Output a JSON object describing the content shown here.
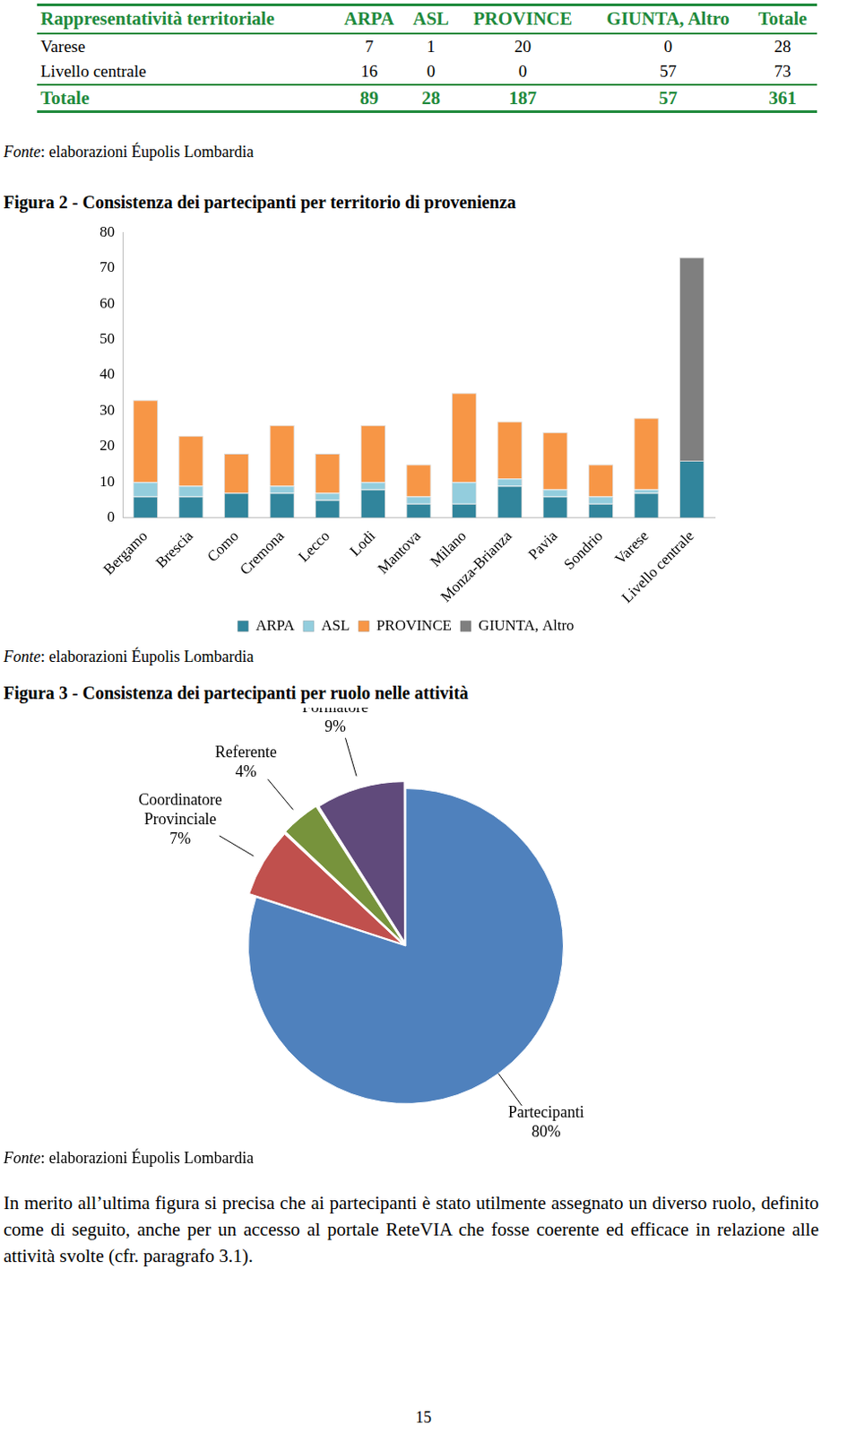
{
  "table": {
    "header": [
      "Rappresentatività territoriale",
      "ARPA",
      "ASL",
      "PROVINCE",
      "GIUNTA, Altro",
      "Totale"
    ],
    "rows": [
      [
        "Varese",
        7,
        1,
        20,
        0,
        28
      ],
      [
        "Livello centrale",
        16,
        0,
        0,
        57,
        73
      ]
    ],
    "total": [
      "Totale",
      89,
      28,
      187,
      57,
      361
    ],
    "source": "Fonte: elaborazioni Éupolis Lombardia"
  },
  "chart_data": [
    {
      "type": "bar",
      "title": "Figura 2 - Consistenza dei partecipanti per territorio di provenienza",
      "categories": [
        "Bergamo",
        "Brescia",
        "Como",
        "Cremona",
        "Lecco",
        "Lodi",
        "Mantova",
        "Milano",
        "Monza-Brianza",
        "Pavia",
        "Sondrio",
        "Varese",
        "Livello centrale"
      ],
      "series": [
        {
          "name": "ARPA",
          "color": "#31859c",
          "values": [
            6,
            6,
            7,
            7,
            5,
            8,
            4,
            4,
            9,
            6,
            4,
            7,
            16
          ]
        },
        {
          "name": "ASL",
          "color": "#93cddd",
          "values": [
            4,
            3,
            0,
            2,
            2,
            2,
            2,
            6,
            2,
            2,
            2,
            1,
            0
          ]
        },
        {
          "name": "PROVINCE",
          "color": "#f79646",
          "values": [
            23,
            14,
            11,
            17,
            11,
            16,
            9,
            25,
            16,
            16,
            9,
            20,
            0
          ]
        },
        {
          "name": "GIUNTA, Altro",
          "color": "#7f7f7f",
          "values": [
            0,
            0,
            0,
            0,
            0,
            0,
            0,
            0,
            0,
            0,
            0,
            0,
            57
          ]
        }
      ],
      "ylim": [
        0,
        80
      ],
      "yticks": [
        0,
        10,
        20,
        30,
        40,
        50,
        60,
        70,
        80
      ],
      "stacked": true,
      "grid": false,
      "legend": "bottom",
      "source": "Fonte: elaborazioni Éupolis Lombardia"
    },
    {
      "type": "pie",
      "title": "Figura 3 - Consistenza dei partecipanti per ruolo nelle attività",
      "categories": [
        "Partecipanti",
        "Coordinatore Provinciale",
        "Referente",
        "Formatore"
      ],
      "values": [
        80,
        7,
        4,
        9
      ],
      "value_labels": [
        "80%",
        "7%",
        "4%",
        "9%"
      ],
      "colors": [
        "#4f81bd",
        "#c0504d",
        "#77933c",
        "#604a7b"
      ],
      "data_labels": true,
      "source": "Fonte: elaborazioni Éupolis Lombardia"
    }
  ],
  "paragraph": "In merito all’ultima figura si precisa che ai partecipanti è stato utilmente assegnato un diverso ruolo, definito come di seguito, anche per un accesso al portale ReteVIA che fosse coerente ed efficace in relazione alle attività svolte (cfr. paragrafo 3.1).",
  "page_number": "15"
}
